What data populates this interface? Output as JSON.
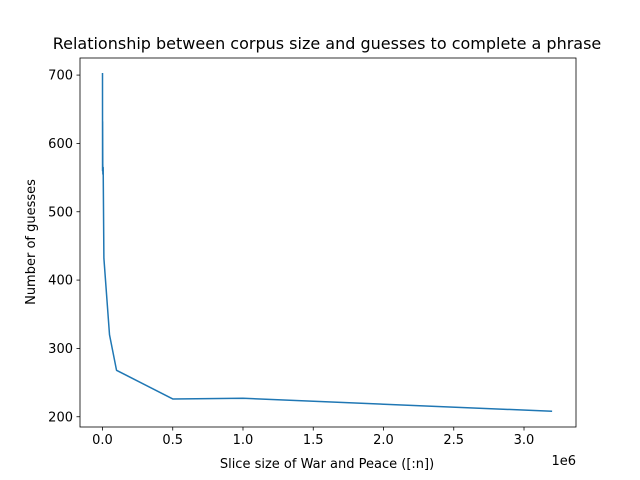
{
  "chart_data": {
    "type": "line",
    "title": "Relationship between corpus size and guesses to complete a phrase",
    "xlabel": "Slice size of War and Peace ([:n])",
    "ylabel": "Number of guesses",
    "x_offset_label": "1e6",
    "xlim": [
      -160000,
      3370000
    ],
    "ylim": [
      185,
      725
    ],
    "x_ticks": [
      0,
      500000,
      1000000,
      1500000,
      2000000,
      2500000,
      3000000
    ],
    "x_tick_labels": [
      "0.0",
      "0.5",
      "1.0",
      "1.5",
      "2.0",
      "2.5",
      "3.0"
    ],
    "y_ticks": [
      200,
      300,
      400,
      500,
      600,
      700
    ],
    "y_tick_labels": [
      "200",
      "300",
      "400",
      "500",
      "600",
      "700"
    ],
    "grid": false,
    "series": [
      {
        "color": "#1f77b4",
        "x": [
          100,
          500,
          1000,
          2000,
          3000,
          5000,
          10000,
          50000,
          100000,
          500000,
          1000000,
          3200000
        ],
        "y": [
          703,
          560,
          632,
          570,
          555,
          565,
          432,
          320,
          268,
          226,
          227,
          208
        ]
      }
    ]
  }
}
